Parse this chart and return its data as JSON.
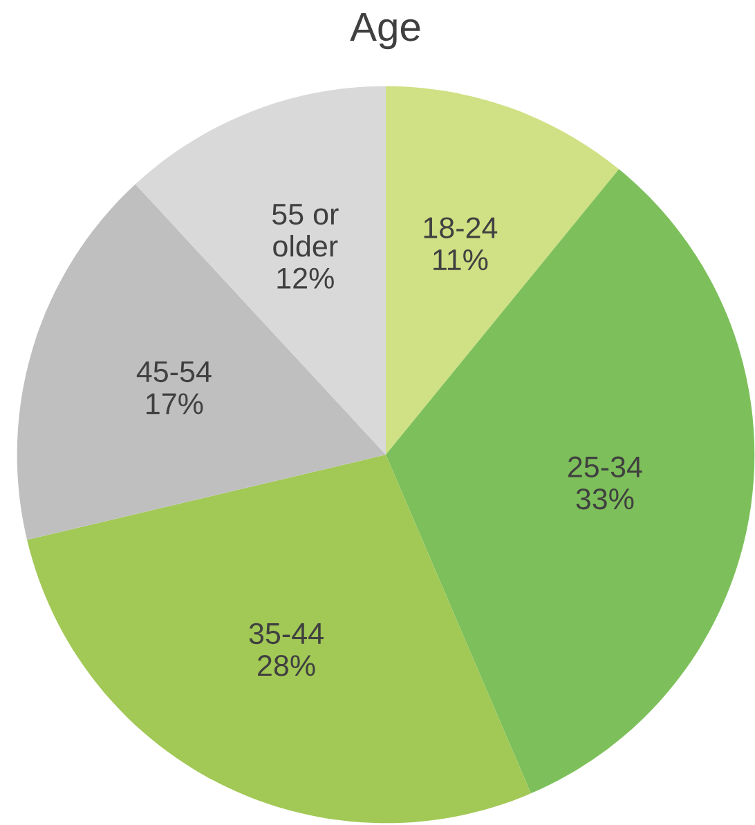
{
  "chart_data": {
    "type": "pie",
    "title": "Age",
    "categories": [
      "18-24",
      "25-34",
      "35-44",
      "45-54",
      "55 or\nolder"
    ],
    "values": [
      11,
      33,
      28,
      17,
      12
    ],
    "colors": [
      "#d0e084",
      "#7dc05b",
      "#a2c856",
      "#bfbfbf",
      "#d9d9d9"
    ],
    "value_labels": [
      "11%",
      "33%",
      "28%",
      "17%",
      "12%"
    ]
  }
}
